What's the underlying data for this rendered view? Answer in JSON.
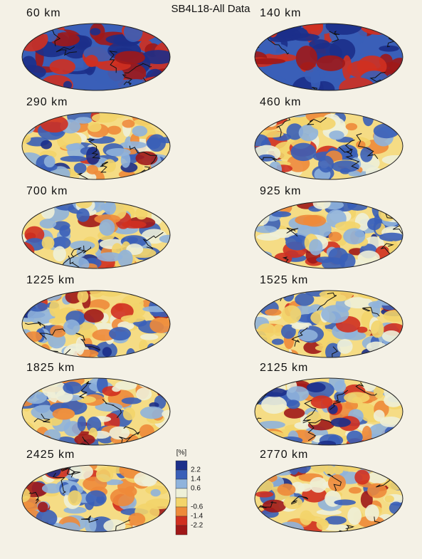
{
  "title": "SB4L18-All Data",
  "panels": [
    {
      "label": "60 km"
    },
    {
      "label": "140 km"
    },
    {
      "label": "290 km"
    },
    {
      "label": "460 km"
    },
    {
      "label": "700 km"
    },
    {
      "label": "925 km"
    },
    {
      "label": "1225 km"
    },
    {
      "label": "1525 km"
    },
    {
      "label": "1825 km"
    },
    {
      "label": "2125 km"
    },
    {
      "label": "2425 km"
    },
    {
      "label": "2770 km"
    }
  ],
  "colorbar": {
    "unit": "[%]",
    "ticks": [
      2.2,
      1.4,
      0.6,
      -0.6,
      -1.4,
      -2.2
    ]
  }
}
